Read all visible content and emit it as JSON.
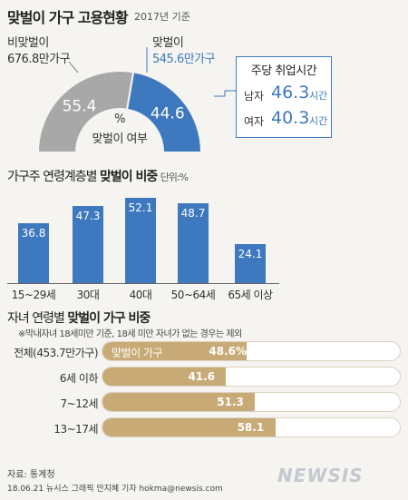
{
  "title": "맞벌이 가구 고용현황",
  "year_note": "2017년 기준",
  "donut": {
    "non_dual_label": "비맞벌이",
    "non_dual_count": "676.8만가구",
    "dual_label": "맞벌이",
    "dual_count": "545.6만가구",
    "center_unit": "%",
    "center_label": "맞벌이 여부",
    "colors": {
      "non_dual": "#a8a8a8",
      "dual": "#3e78bf"
    }
  },
  "work_hours": {
    "title": "주당 취업시간",
    "rows": [
      {
        "label": "남자",
        "value": "46.3",
        "unit": "시간"
      },
      {
        "label": "여자",
        "value": "40.3",
        "unit": "시간"
      }
    ]
  },
  "age_section": {
    "title_prefix": "가구주 연령계층별 ",
    "title_bold": "맞벌이 비중",
    "unit": "단위:%"
  },
  "child_section": {
    "title_prefix": "자녀 연령별 ",
    "title_bold": "맞벌이 가구 비중",
    "note": "※막내자녀 18세미만 기준, 18세 미만 자녀가 없는 경우는 제외",
    "fill_legend": "맞벌이 가구"
  },
  "chart_data": [
    {
      "type": "pie",
      "title": "맞벌이 여부",
      "labels": [
        "비맞벌이",
        "맞벌이"
      ],
      "values": [
        55.4,
        44.6
      ],
      "counts": [
        "676.8만가구",
        "545.6만가구"
      ],
      "unit": "%",
      "colors": [
        "#a8a8a8",
        "#3e78bf"
      ]
    },
    {
      "type": "bar",
      "title": "가구주 연령계층별 맞벌이 비중",
      "unit": "단위:%",
      "categories": [
        "15~29세",
        "30대",
        "40대",
        "50~64세",
        "65세 이상"
      ],
      "values": [
        36.8,
        47.3,
        52.1,
        48.7,
        24.1
      ],
      "ylim": [
        0,
        60
      ],
      "color": "#3e78bf"
    },
    {
      "type": "bar",
      "orientation": "horizontal",
      "title": "자녀 연령별 맞벌이 가구 비중",
      "categories": [
        "전체(453.7만가구)",
        "6세 이하",
        "7~12세",
        "13~17세"
      ],
      "values": [
        48.6,
        41.6,
        51.3,
        58.1
      ],
      "value_labels": [
        "48.6%",
        "41.6",
        "51.3",
        "58.1"
      ],
      "xlim": [
        0,
        100
      ],
      "color": "#c8aa76"
    }
  ],
  "footer": {
    "source": "자료: 통계청",
    "credit": "18.06.21 뉴시스 그래픽 안지혜 기자 hokma@newsis.com",
    "logo": "NEWSIS"
  }
}
